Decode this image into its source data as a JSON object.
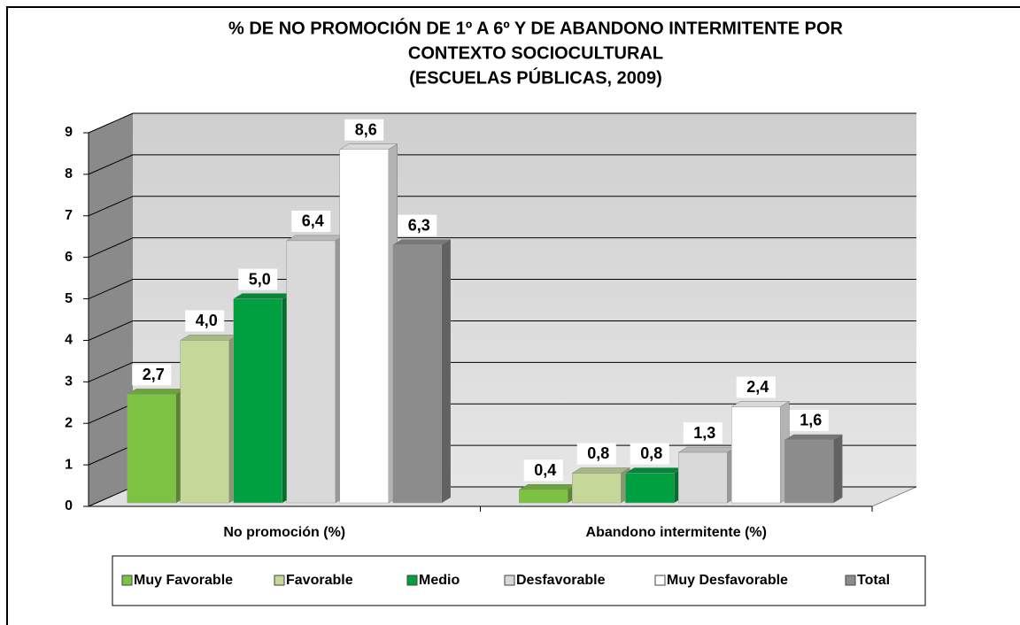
{
  "chart_data": {
    "type": "bar3d",
    "title": [
      "% DE NO PROMOCIÓN DE 1º A 6º Y DE ABANDONO INTERMITENTE POR",
      "CONTEXTO SOCIOCULTURAL",
      "(ESCUELAS PÚBLICAS, 2009)"
    ],
    "categories": [
      "No promoción (%)",
      "Abandono intermitente (%)"
    ],
    "series": [
      {
        "name": "Muy Favorable",
        "color": "#7dc242",
        "values": [
          2.7,
          0.4
        ],
        "value_labels": [
          "2,7",
          "0,4"
        ]
      },
      {
        "name": "Favorable",
        "color": "#c5d89a",
        "values": [
          4.0,
          0.8
        ],
        "value_labels": [
          "4,0",
          "0,8"
        ]
      },
      {
        "name": "Medio",
        "color": "#00a040",
        "values": [
          5.0,
          0.8
        ],
        "value_labels": [
          "5,0",
          "0,8"
        ]
      },
      {
        "name": "Desfavorable",
        "color": "#d9d9d9",
        "values": [
          6.4,
          1.3
        ],
        "value_labels": [
          "6,4",
          "1,3"
        ]
      },
      {
        "name": "Muy Desfavorable",
        "color": "#ffffff",
        "values": [
          8.6,
          2.4
        ],
        "value_labels": [
          "8,6",
          "2,4"
        ]
      },
      {
        "name": "Total",
        "color": "#8c8c8c",
        "values": [
          6.3,
          1.6
        ],
        "value_labels": [
          "6,3",
          "1,6"
        ]
      }
    ],
    "ylim": [
      0,
      9
    ],
    "yticks": [
      0,
      1,
      2,
      3,
      4,
      5,
      6,
      7,
      8,
      9
    ],
    "grid": true,
    "legend": "bottom"
  }
}
